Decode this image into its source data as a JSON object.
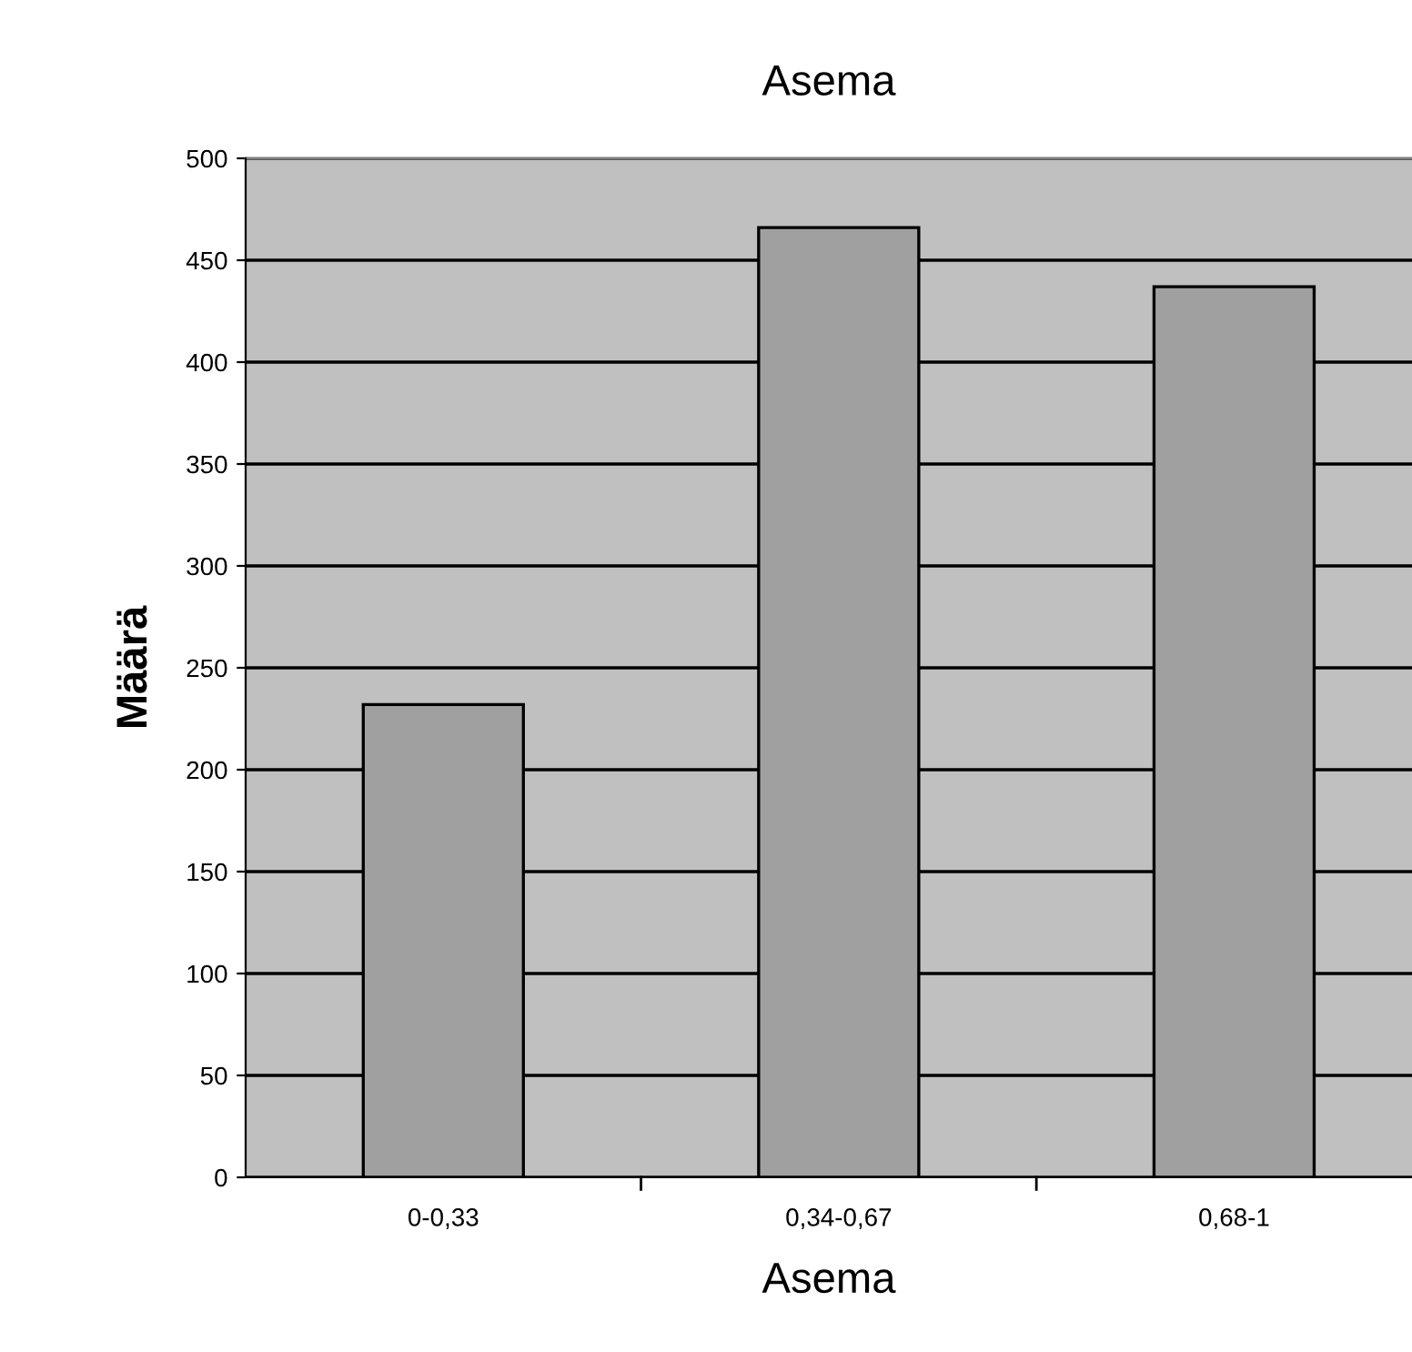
{
  "chart_data": {
    "type": "bar",
    "title": "Asema",
    "xlabel": "Asema",
    "ylabel": "Määrä",
    "categories": [
      "0-0,33",
      "0,34-0,67",
      "0,68-1"
    ],
    "values": [
      232,
      466,
      437
    ],
    "color": "#a0a0a0",
    "ylim": [
      0,
      500
    ],
    "yticks": [
      0,
      50,
      100,
      150,
      200,
      250,
      300,
      350,
      400,
      450,
      500
    ],
    "grid": "y",
    "legend": false
  }
}
